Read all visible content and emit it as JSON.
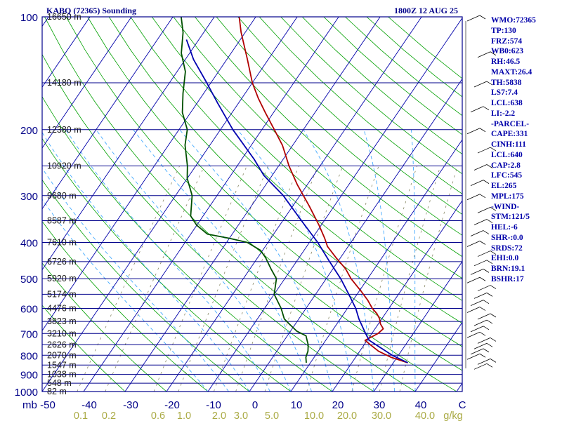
{
  "header": {
    "station": "KABQ (72365) Sounding",
    "valid_time": "1800Z 12 AUG 25"
  },
  "axis": {
    "pressure_unit": "mb",
    "mixing_ratio_unit": "g/kg"
  },
  "stats": [
    "WMO:72365",
    "TP:130",
    "FRZ:574",
    "WB0:623",
    "RH:46.5",
    "MAXT:26.4",
    "TH:5838",
    "LS7:7.4",
    "LCL:638",
    "LI:-2.2",
    "-PARCEL-",
    "CAPE:331",
    "CINH:111",
    "LCL:640",
    "CAP:2.8",
    "LFC:545",
    "EL:265",
    "MPL:175",
    "-WIND-",
    "STM:121/5",
    "HEL:-6",
    "SHR-:0.0",
    "SRDS:72",
    "EHI:0.0",
    "BRN:19.1",
    "BSHR:17"
  ],
  "colors": {
    "isobar": "#00008b",
    "isotherm": "#0000aa",
    "dry_adiabat": "#00a000",
    "moist_adiabat": "#44aaff",
    "mixing_ratio": "#888866",
    "temperature": "#b00000",
    "dewpoint": "#005000",
    "parcel": "#0000b0",
    "text": "#000088"
  },
  "chart_data": {
    "type": "line",
    "title": "KABQ (72365) Sounding",
    "subtitle": "1800Z 12 AUG 25",
    "xlabel": "",
    "ylabel": "mb",
    "xlim": [
      -50,
      50
    ],
    "ylim": [
      1000,
      100
    ],
    "pressure_ticks": [
      100,
      200,
      300,
      400,
      500,
      600,
      700,
      800,
      900,
      1000
    ],
    "temperature_ticks": [
      -50,
      -40,
      -30,
      -20,
      -10,
      0,
      10,
      20,
      30,
      40
    ],
    "bottom_temperature_labels": [
      "-50",
      "-40",
      "-30",
      "-20",
      "-10",
      "0",
      "10",
      "20",
      "30",
      "40",
      "C"
    ],
    "mixing_ratio_labels": [
      "0.1",
      "0.2",
      "0.6",
      "1.0",
      "2.0",
      "3.0",
      "5.0",
      "10.0",
      "20.0",
      "30.0",
      "40.0"
    ],
    "height_labels": [
      {
        "p": 100,
        "label": "16650 m"
      },
      {
        "p": 150,
        "label": "14180 m"
      },
      {
        "p": 200,
        "label": "12380 m"
      },
      {
        "p": 250,
        "label": "10920 m"
      },
      {
        "p": 300,
        "label": "9680 m"
      },
      {
        "p": 350,
        "label": "8587 m"
      },
      {
        "p": 400,
        "label": "7610 m"
      },
      {
        "p": 450,
        "label": "6726 m"
      },
      {
        "p": 500,
        "label": "5920 m"
      },
      {
        "p": 550,
        "label": "5174 m"
      },
      {
        "p": 600,
        "label": "4476 m"
      },
      {
        "p": 650,
        "label": "3823 m"
      },
      {
        "p": 700,
        "label": "3210 m"
      },
      {
        "p": 750,
        "label": "2626 m"
      },
      {
        "p": 800,
        "label": "2070 m"
      },
      {
        "p": 850,
        "label": "1547 m"
      },
      {
        "p": 900,
        "label": "1038 m"
      },
      {
        "p": 950,
        "label": "548 m"
      },
      {
        "p": 1000,
        "label": "82 m"
      }
    ],
    "series": [
      {
        "name": "Temperature",
        "points": [
          [
            838,
            33.5
          ],
          [
            810,
            28.5
          ],
          [
            780,
            24.5
          ],
          [
            750,
            21.5
          ],
          [
            730,
            19.5
          ],
          [
            700,
            21.5
          ],
          [
            680,
            22.0
          ],
          [
            660,
            20.5
          ],
          [
            640,
            19.5
          ],
          [
            620,
            18.0
          ],
          [
            600,
            16.0
          ],
          [
            570,
            13.5
          ],
          [
            540,
            10.5
          ],
          [
            500,
            6.0
          ],
          [
            470,
            3.0
          ],
          [
            440,
            -1.0
          ],
          [
            410,
            -5.0
          ],
          [
            390,
            -7.0
          ],
          [
            360,
            -10.5
          ],
          [
            320,
            -16.0
          ],
          [
            280,
            -22.5
          ],
          [
            250,
            -27.5
          ],
          [
            220,
            -32.5
          ],
          [
            200,
            -37.0
          ],
          [
            180,
            -42.0
          ],
          [
            165,
            -46.0
          ],
          [
            150,
            -50.0
          ],
          [
            130,
            -55.0
          ],
          [
            110,
            -61.0
          ],
          [
            100,
            -64.0
          ]
        ]
      },
      {
        "name": "Dewpoint",
        "points": [
          [
            838,
            9.0
          ],
          [
            810,
            8.0
          ],
          [
            780,
            7.5
          ],
          [
            750,
            6.5
          ],
          [
            730,
            5.5
          ],
          [
            710,
            4.5
          ],
          [
            690,
            1.5
          ],
          [
            660,
            -1.5
          ],
          [
            640,
            -3.5
          ],
          [
            600,
            -6.0
          ],
          [
            550,
            -10.0
          ],
          [
            500,
            -12.0
          ],
          [
            470,
            -15.0
          ],
          [
            440,
            -18.0
          ],
          [
            420,
            -20.5
          ],
          [
            400,
            -25.0
          ],
          [
            390,
            -30.0
          ],
          [
            380,
            -36.0
          ],
          [
            360,
            -40.0
          ],
          [
            340,
            -43.0
          ],
          [
            300,
            -46.0
          ],
          [
            270,
            -50.0
          ],
          [
            250,
            -52.0
          ],
          [
            220,
            -56.0
          ],
          [
            200,
            -58.0
          ],
          [
            180,
            -62.0
          ],
          [
            160,
            -65.0
          ],
          [
            140,
            -68.0
          ],
          [
            125,
            -72.0
          ],
          [
            110,
            -75.0
          ],
          [
            100,
            -78.0
          ]
        ]
      },
      {
        "name": "Parcel",
        "points": [
          [
            838,
            33.5
          ],
          [
            800,
            28.5
          ],
          [
            760,
            24.0
          ],
          [
            730,
            20.5
          ],
          [
            700,
            18.5
          ],
          [
            640,
            14.5
          ],
          [
            600,
            12.0
          ],
          [
            550,
            8.0
          ],
          [
            500,
            3.5
          ],
          [
            450,
            -2.0
          ],
          [
            400,
            -8.0
          ],
          [
            350,
            -15.5
          ],
          [
            300,
            -24.0
          ],
          [
            265,
            -32.0
          ],
          [
            240,
            -37.0
          ],
          [
            200,
            -47.0
          ],
          [
            170,
            -55.0
          ],
          [
            150,
            -61.0
          ],
          [
            130,
            -68.0
          ],
          [
            115,
            -73.0
          ]
        ]
      }
    ],
    "grid": true,
    "legend": "none"
  }
}
